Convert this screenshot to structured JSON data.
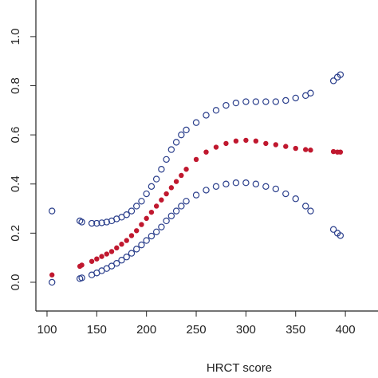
{
  "chart_data": {
    "type": "scatter",
    "xlabel": "HRCT score",
    "x": [
      105,
      133,
      135,
      145,
      150,
      155,
      160,
      165,
      170,
      175,
      180,
      185,
      190,
      195,
      200,
      205,
      210,
      215,
      220,
      225,
      230,
      235,
      240,
      250,
      260,
      270,
      280,
      290,
      300,
      310,
      320,
      330,
      340,
      350,
      360,
      365,
      388,
      392,
      395
    ],
    "series": [
      {
        "color": "#2b3f8c",
        "marker": "open",
        "values": [
          0.29,
          0.25,
          0.245,
          0.24,
          0.24,
          0.242,
          0.245,
          0.25,
          0.258,
          0.265,
          0.275,
          0.29,
          0.31,
          0.33,
          0.36,
          0.39,
          0.42,
          0.46,
          0.5,
          0.54,
          0.57,
          0.6,
          0.62,
          0.65,
          0.68,
          0.7,
          0.72,
          0.73,
          0.735,
          0.735,
          0.735,
          0.735,
          0.74,
          0.75,
          0.76,
          0.77,
          0.82,
          0.835,
          0.845
        ]
      },
      {
        "color": "#c0182f",
        "marker": "filled",
        "values": [
          0.03,
          0.065,
          0.07,
          0.085,
          0.095,
          0.105,
          0.115,
          0.125,
          0.14,
          0.155,
          0.17,
          0.19,
          0.21,
          0.235,
          0.26,
          0.285,
          0.31,
          0.335,
          0.36,
          0.385,
          0.41,
          0.435,
          0.46,
          0.5,
          0.53,
          0.55,
          0.565,
          0.575,
          0.578,
          0.575,
          0.565,
          0.56,
          0.553,
          0.545,
          0.54,
          0.538,
          0.532,
          0.53,
          0.53
        ]
      },
      {
        "color": "#2b3f8c",
        "marker": "open",
        "values": [
          0.0,
          0.015,
          0.018,
          0.03,
          0.038,
          0.047,
          0.056,
          0.066,
          0.077,
          0.09,
          0.103,
          0.118,
          0.135,
          0.152,
          0.17,
          0.188,
          0.205,
          0.225,
          0.25,
          0.27,
          0.29,
          0.31,
          0.33,
          0.355,
          0.375,
          0.39,
          0.4,
          0.405,
          0.405,
          0.4,
          0.39,
          0.38,
          0.36,
          0.34,
          0.31,
          0.29,
          0.215,
          0.2,
          0.19
        ]
      }
    ],
    "xlim": [
      88.8,
      432.8
    ],
    "ylim": [
      -0.117,
      1.149
    ],
    "xticks": [
      100,
      150,
      200,
      250,
      300,
      350,
      400
    ],
    "yticks": [
      {
        "value": 0,
        "label": "0.0"
      },
      0.2,
      0.4,
      0.6,
      0.8,
      {
        "value": 1,
        "label": "1.0"
      }
    ]
  }
}
